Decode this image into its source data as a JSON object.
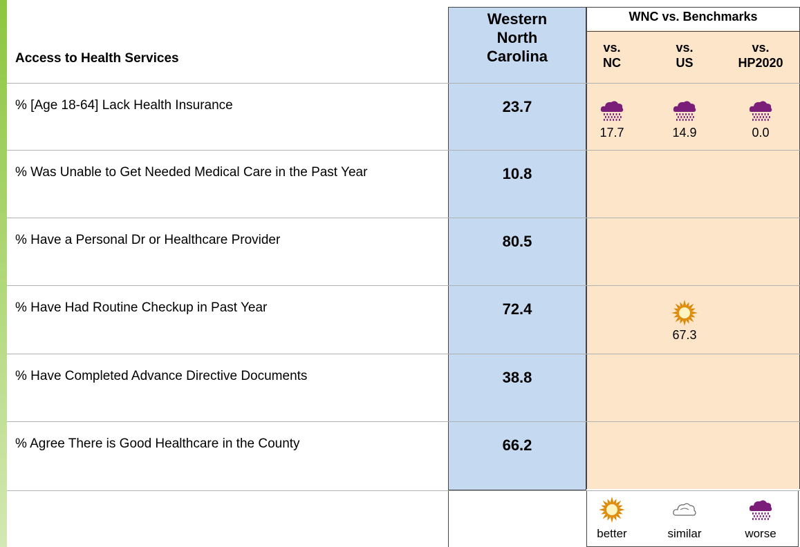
{
  "header": {
    "section": "Access to Health Services",
    "wnc": "Western North Carolina",
    "benchmarks_title": "WNC vs. Benchmarks",
    "columns": [
      "vs. NC",
      "vs. US",
      "vs. HP2020"
    ]
  },
  "rows": [
    {
      "label": "% [Age 18-64] Lack Health Insurance",
      "value": "23.7",
      "benchmarks": [
        {
          "icon": "worse",
          "value": "17.7"
        },
        {
          "icon": "worse",
          "value": "14.9"
        },
        {
          "icon": "worse",
          "value": "0.0"
        }
      ]
    },
    {
      "label": "% Was Unable to Get Needed Medical Care in the Past Year",
      "value": "10.8",
      "benchmarks": [
        null,
        null,
        null
      ]
    },
    {
      "label": "% Have a Personal Dr or Healthcare Provider",
      "value": "80.5",
      "benchmarks": [
        null,
        null,
        null
      ]
    },
    {
      "label": "% Have Had Routine Checkup in Past Year",
      "value": "72.4",
      "benchmarks": [
        null,
        {
          "icon": "better",
          "value": "67.3"
        },
        null
      ]
    },
    {
      "label": "% Have Completed Advance Directive Documents",
      "value": "38.8",
      "benchmarks": [
        null,
        null,
        null
      ]
    },
    {
      "label": "% Agree There is Good Healthcare in the County",
      "value": "66.2",
      "benchmarks": [
        null,
        null,
        null
      ]
    }
  ],
  "legend": [
    "better",
    "similar",
    "worse"
  ]
}
